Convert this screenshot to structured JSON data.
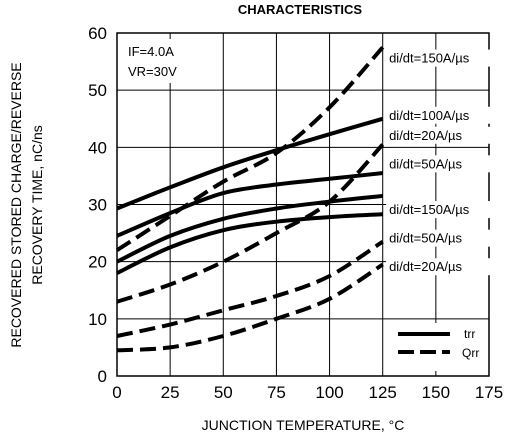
{
  "chart_data": {
    "type": "line",
    "title": "CHARACTERISTICS",
    "xlabel": "JUNCTION TEMPERATURE, °C",
    "ylabel_line1": "RECOVERED STORED CHARGE/REVERSE",
    "ylabel_line2": "RECOVERY TIME, nC/ns",
    "xlim": [
      0,
      175
    ],
    "ylim": [
      0,
      60
    ],
    "x_ticks": [
      "0",
      "25",
      "50",
      "75",
      "100",
      "125",
      "150",
      "175"
    ],
    "y_ticks": [
      "0",
      "10",
      "20",
      "30",
      "40",
      "50",
      "60"
    ],
    "grid": true,
    "conditions": [
      "IF=4.0A",
      "VR=30V"
    ],
    "legend": {
      "position": "bottom-right",
      "entries": [
        {
          "label": "trr",
          "style": "solid"
        },
        {
          "label": "Qrr",
          "style": "dashed"
        }
      ]
    },
    "series": [
      {
        "name": "di/dt=150A/µs",
        "style": "dashed",
        "x": [
          0,
          25,
          50,
          75,
          100,
          125
        ],
        "y": [
          22,
          28,
          34,
          39,
          47,
          57.5
        ]
      },
      {
        "name": "di/dt=100A/µs",
        "style": "solid",
        "x": [
          0,
          25,
          50,
          75,
          100,
          125
        ],
        "y": [
          29.3,
          33,
          36.5,
          39.5,
          42.3,
          45
        ]
      },
      {
        "name": "di/dt=20A/µs",
        "style": "solid",
        "x": [
          0,
          25,
          50,
          75,
          100,
          125
        ],
        "y": [
          24.5,
          28.5,
          32,
          33.5,
          34.5,
          35.5
        ]
      },
      {
        "name": "di/dt=50A/µs",
        "style": "solid",
        "x": [
          0,
          25,
          50,
          75,
          100,
          125
        ],
        "y": [
          20,
          24.5,
          27.5,
          29.3,
          30.5,
          31.5
        ]
      },
      {
        "name": "di/dt=150A/µs",
        "style": "solid",
        "x": [
          0,
          25,
          50,
          75,
          100,
          125
        ],
        "y": [
          18,
          22.5,
          25.5,
          27,
          27.8,
          28.3
        ]
      },
      {
        "name": "di/dt=50A/µs",
        "style": "dashed",
        "x": [
          0,
          25,
          50,
          75,
          100,
          125
        ],
        "y": [
          13,
          16,
          20,
          25,
          30.5,
          40.5
        ]
      },
      {
        "name": "di/dt=20A/µs",
        "style": "dashed",
        "x": [
          0,
          25,
          50,
          75,
          100,
          125
        ],
        "y": [
          7,
          9,
          11.5,
          14,
          17.5,
          23.5
        ]
      },
      {
        "name": "",
        "style": "dashed",
        "x": [
          0,
          25,
          50,
          75,
          100,
          125
        ],
        "y": [
          4.5,
          5,
          7,
          10,
          13.5,
          19.5
        ]
      }
    ],
    "annotations": [
      {
        "text": "di/dt=150A/µs",
        "x": 128,
        "y": 55
      },
      {
        "text": "di/dt=100A/µs",
        "x": 128,
        "y": 45
      },
      {
        "text": "di/dt=20A/µs",
        "x": 128,
        "y": 41.5
      },
      {
        "text": "di/dt=50A/µs",
        "x": 128,
        "y": 36.5
      },
      {
        "text": "di/dt=150A/µs",
        "x": 128,
        "y": 28.5
      },
      {
        "text": "di/dt=50A/µs",
        "x": 128,
        "y": 23.5
      },
      {
        "text": "di/dt=20A/µs",
        "x": 128,
        "y": 18.5
      }
    ]
  }
}
